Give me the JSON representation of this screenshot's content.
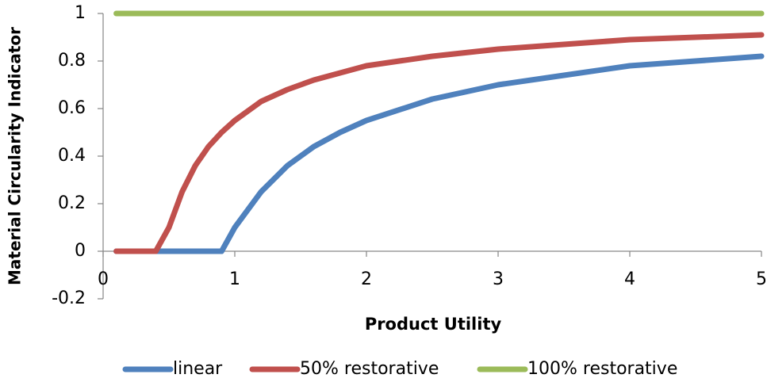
{
  "chart_data": {
    "type": "line",
    "xlabel": "Product Utility",
    "ylabel": "Material Circularity Indicator",
    "x": [
      0.1,
      0.2,
      0.3,
      0.4,
      0.5,
      0.6,
      0.7,
      0.8,
      0.9,
      1,
      1.2,
      1.4,
      1.6,
      1.8,
      2,
      2.5,
      3,
      3.5,
      4,
      4.5,
      5
    ],
    "series": [
      {
        "name": "linear",
        "color": "#4f81bd",
        "values": [
          0,
          0,
          0,
          0,
          0,
          0,
          0,
          0,
          0,
          0.1,
          0.25,
          0.36,
          0.44,
          0.5,
          0.55,
          0.64,
          0.7,
          0.74,
          0.78,
          0.8,
          0.82
        ]
      },
      {
        "name": "50% restorative",
        "color": "#c0504d",
        "values": [
          0,
          0,
          0,
          0,
          0.1,
          0.25,
          0.36,
          0.44,
          0.5,
          0.55,
          0.63,
          0.68,
          0.72,
          0.75,
          0.78,
          0.82,
          0.85,
          0.87,
          0.89,
          0.9,
          0.91
        ]
      },
      {
        "name": "100% restorative",
        "color": "#9bbb59",
        "values": [
          1,
          1,
          1,
          1,
          1,
          1,
          1,
          1,
          1,
          1,
          1,
          1,
          1,
          1,
          1,
          1,
          1,
          1,
          1,
          1,
          1
        ]
      }
    ],
    "xlim": [
      0,
      5
    ],
    "xticks": [
      0,
      1,
      2,
      3,
      4,
      5
    ],
    "ylim": [
      -0.2,
      1
    ],
    "yticks": [
      -0.2,
      0,
      0.2,
      0.4,
      0.6,
      0.8,
      1
    ]
  }
}
